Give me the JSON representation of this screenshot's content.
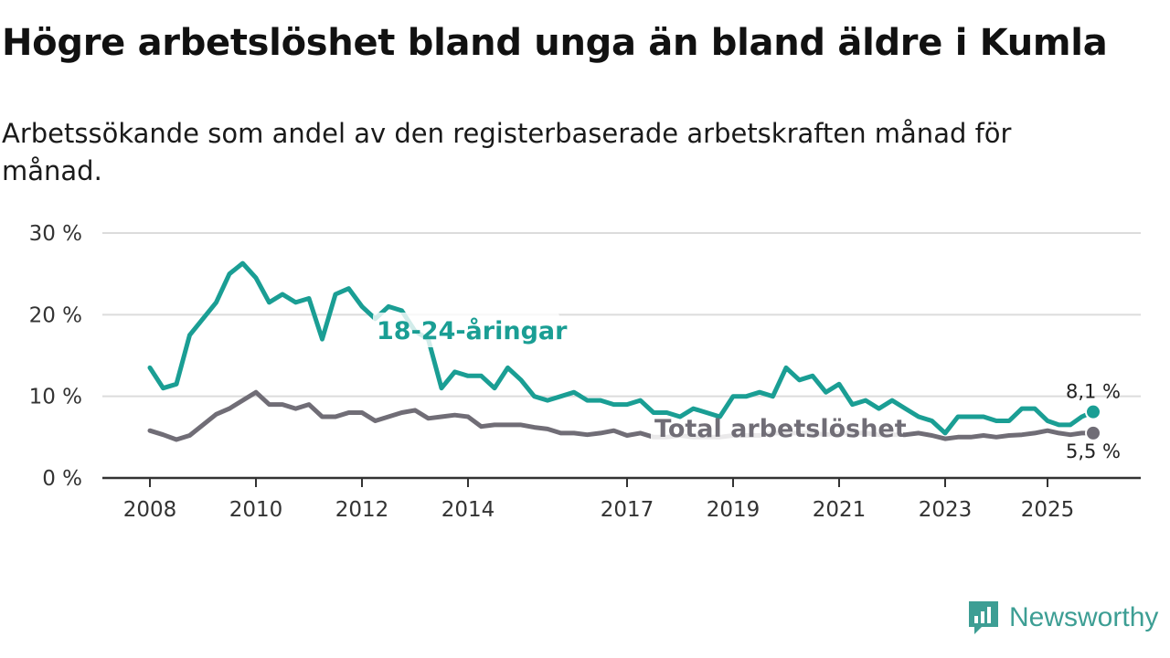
{
  "title": "Högre arbetslöshet bland unga än bland äldre i Kumla",
  "subtitle": "Arbetssökande som andel av den registerbaserade arbetskraften månad för månad.",
  "brand": {
    "name": "Newsworthy"
  },
  "colors": {
    "youth": "#1a9e94",
    "total": "#706d76",
    "grid": "#dcdcdc",
    "axis": "#333333"
  },
  "chart_data": {
    "type": "line",
    "ylim": [
      0,
      30
    ],
    "xlim": [
      2008,
      2026.75
    ],
    "yticks": [
      0,
      10,
      20,
      30
    ],
    "ytick_labels": [
      "0 %",
      "10 %",
      "20 %",
      "30 %"
    ],
    "xticks": [
      2008,
      2010,
      2012,
      2014,
      2017,
      2019,
      2021,
      2023,
      2025
    ],
    "xtick_labels": [
      "2008",
      "2010",
      "2012",
      "2014",
      "2017",
      "2019",
      "2021",
      "2023",
      "2025"
    ],
    "series": [
      {
        "name": "18-24-åringar",
        "label": "18-24-åringar",
        "end_label": "8,1 %",
        "color": "#1a9e94",
        "x": [
          2008.0,
          2008.25,
          2008.5,
          2008.75,
          2009.0,
          2009.25,
          2009.5,
          2009.75,
          2010.0,
          2010.25,
          2010.5,
          2010.75,
          2011.0,
          2011.25,
          2011.5,
          2011.75,
          2012.0,
          2012.25,
          2012.5,
          2012.75,
          2013.0,
          2013.25,
          2013.5,
          2013.75,
          2014.0,
          2014.25,
          2014.5,
          2014.75,
          2015.0,
          2015.25,
          2015.5,
          2015.75,
          2016.0,
          2016.25,
          2016.5,
          2016.75,
          2017.0,
          2017.25,
          2017.5,
          2017.75,
          2018.0,
          2018.25,
          2018.5,
          2018.75,
          2019.0,
          2019.25,
          2019.5,
          2019.75,
          2020.0,
          2020.25,
          2020.5,
          2020.75,
          2021.0,
          2021.25,
          2021.5,
          2021.75,
          2022.0,
          2022.25,
          2022.5,
          2022.75,
          2023.0,
          2023.25,
          2023.5,
          2023.75,
          2024.0,
          2024.25,
          2024.5,
          2024.75,
          2025.0,
          2025.25,
          2025.5,
          2025.75,
          2026.0
        ],
        "values": [
          13.5,
          11.0,
          11.5,
          17.5,
          19.5,
          21.5,
          25.0,
          26.3,
          24.5,
          21.5,
          22.5,
          21.5,
          22.0,
          17.0,
          22.5,
          23.2,
          21.0,
          19.5,
          21.0,
          20.5,
          18.0,
          17.0,
          11.0,
          13.0,
          12.5,
          12.5,
          11.0,
          13.5,
          12.0,
          10.0,
          9.5,
          10.0,
          10.5,
          9.5,
          9.5,
          9.0,
          9.0,
          9.5,
          8.0,
          8.0,
          7.5,
          8.5,
          8.0,
          7.5,
          10.0,
          10.0,
          10.5,
          10.0,
          13.5,
          12.0,
          12.5,
          10.5,
          11.5,
          9.0,
          9.5,
          8.5,
          9.5,
          8.5,
          7.5,
          7.0,
          5.5,
          7.5,
          7.5,
          7.5,
          7.0,
          7.0,
          8.5,
          8.5,
          7.0,
          6.5,
          6.5,
          7.5,
          8.1
        ]
      },
      {
        "name": "Total arbetslöshet",
        "label": "Total arbetslöshet",
        "end_label": "5,5 %",
        "color": "#706d76",
        "x": [
          2008.0,
          2008.25,
          2008.5,
          2008.75,
          2009.0,
          2009.25,
          2009.5,
          2009.75,
          2010.0,
          2010.25,
          2010.5,
          2010.75,
          2011.0,
          2011.25,
          2011.5,
          2011.75,
          2012.0,
          2012.25,
          2012.5,
          2012.75,
          2013.0,
          2013.25,
          2013.5,
          2013.75,
          2014.0,
          2014.25,
          2014.5,
          2014.75,
          2015.0,
          2015.25,
          2015.5,
          2015.75,
          2016.0,
          2016.25,
          2016.5,
          2016.75,
          2017.0,
          2017.25,
          2017.5,
          2017.75,
          2018.0,
          2018.25,
          2018.5,
          2018.75,
          2019.0,
          2019.25,
          2019.5,
          2019.75,
          2020.0,
          2020.25,
          2020.5,
          2020.75,
          2021.0,
          2021.25,
          2021.5,
          2021.75,
          2022.0,
          2022.25,
          2022.5,
          2022.75,
          2023.0,
          2023.25,
          2023.5,
          2023.75,
          2024.0,
          2024.25,
          2024.5,
          2024.75,
          2025.0,
          2025.25,
          2025.5,
          2025.75,
          2026.0
        ],
        "values": [
          5.8,
          5.3,
          4.7,
          5.2,
          6.5,
          7.8,
          8.5,
          9.5,
          10.5,
          9.0,
          9.0,
          8.5,
          9.0,
          7.5,
          7.5,
          8.0,
          8.0,
          7.0,
          7.5,
          8.0,
          8.3,
          7.3,
          7.5,
          7.7,
          7.5,
          6.3,
          6.5,
          6.5,
          6.5,
          6.2,
          6.0,
          5.5,
          5.5,
          5.3,
          5.5,
          5.8,
          5.2,
          5.5,
          5.0,
          5.0,
          5.2,
          5.0,
          5.0,
          5.0,
          5.2,
          5.2,
          5.2,
          5.5,
          5.5,
          5.5,
          5.5,
          5.3,
          5.5,
          5.5,
          5.5,
          5.3,
          5.3,
          5.3,
          5.5,
          5.2,
          4.8,
          5.0,
          5.0,
          5.2,
          5.0,
          5.2,
          5.3,
          5.5,
          5.8,
          5.5,
          5.3,
          5.5,
          5.5
        ]
      }
    ]
  }
}
